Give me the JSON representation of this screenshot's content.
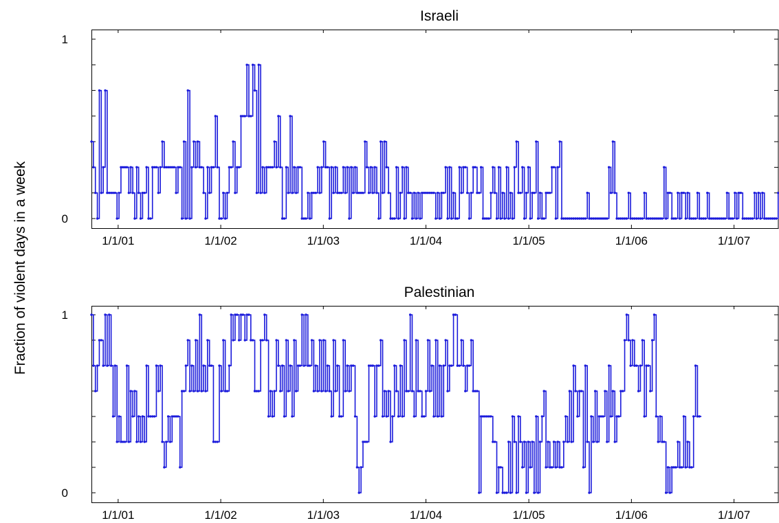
{
  "figure": {
    "ylabel": "Fraction of violent days in a week"
  },
  "chart_data": [
    {
      "type": "line",
      "title": "Israeli",
      "xlabel": "",
      "ylabel": "Fraction of violent days in a week",
      "x_start": "2000-09-28",
      "x_step_days": 7,
      "xlim": [
        "2000-09-28",
        "2007-06-10"
      ],
      "x_ticks": [
        {
          "date": "2001-01-01",
          "label": "1/1/01"
        },
        {
          "date": "2002-01-01",
          "label": "1/1/02"
        },
        {
          "date": "2003-01-01",
          "label": "1/1/03"
        },
        {
          "date": "2004-01-01",
          "label": "1/1/04"
        },
        {
          "date": "2005-01-01",
          "label": "1/1/05"
        },
        {
          "date": "2006-01-01",
          "label": "1/1/06"
        },
        {
          "date": "2007-01-01",
          "label": "1/1/07"
        }
      ],
      "ylim": [
        0,
        1
      ],
      "y_ticks": [
        {
          "value": 0,
          "label": "0"
        },
        {
          "value": 1,
          "label": "1"
        }
      ],
      "y_minor_ticks": [
        0.1429,
        0.2857,
        0.4286,
        0.5714,
        0.7143,
        0.8571
      ],
      "step": true,
      "markers": true,
      "grid": false,
      "color": "#1a1adb",
      "series": [
        {
          "values": [
            0.429,
            0.286,
            0.143,
            0,
            0.714,
            0.143,
            0.286,
            0.714,
            0.143,
            0.143,
            0.143,
            0.143,
            0.143,
            0,
            0.143,
            0.286,
            0.286,
            0.286,
            0.286,
            0.143,
            0.286,
            0.143,
            0,
            0.286,
            0.143,
            0,
            0.143,
            0.143,
            0.286,
            0,
            0,
            0.286,
            0.286,
            0.286,
            0.143,
            0.286,
            0.429,
            0.286,
            0.286,
            0.286,
            0.286,
            0.286,
            0.286,
            0.143,
            0.286,
            0.286,
            0,
            0.429,
            0,
            0.714,
            0,
            0.286,
            0.429,
            0.286,
            0.429,
            0.286,
            0.286,
            0.143,
            0,
            0.286,
            0.143,
            0.286,
            0.286,
            0.571,
            0.286,
            0,
            0,
            0.143,
            0,
            0.143,
            0.286,
            0.286,
            0.429,
            0.143,
            0.286,
            0.286,
            0.571,
            0.571,
            0.571,
            0.857,
            0.571,
            0.571,
            0.857,
            0.714,
            0.143,
            0.857,
            0.143,
            0.286,
            0.143,
            0.286,
            0.286,
            0.286,
            0.286,
            0.429,
            0.286,
            0.571,
            0.286,
            0,
            0,
            0.286,
            0.143,
            0.571,
            0.143,
            0.286,
            0.143,
            0.286,
            0.286,
            0,
            0,
            0,
            0.143,
            0,
            0.143,
            0.143,
            0.143,
            0.286,
            0.143,
            0.286,
            0.429,
            0.286,
            0.286,
            0,
            0.286,
            0.143,
            0.286,
            0.143,
            0.143,
            0.143,
            0.286,
            0.143,
            0.286,
            0,
            0.286,
            0.143,
            0.286,
            0.143,
            0.143,
            0.143,
            0.143,
            0.429,
            0.286,
            0.143,
            0.286,
            0.143,
            0.286,
            0.143,
            0,
            0.429,
            0.143,
            0.429,
            0.286,
            0.143,
            0,
            0,
            0,
            0.286,
            0,
            0.143,
            0.286,
            0,
            0.286,
            0.143,
            0.143,
            0,
            0.143,
            0,
            0.143,
            0,
            0.143,
            0.143,
            0.143,
            0.143,
            0.143,
            0.143,
            0.143,
            0,
            0.143,
            0,
            0.143,
            0.143,
            0.286,
            0,
            0.286,
            0,
            0.143,
            0,
            0,
            0.286,
            0.143,
            0.286,
            0.286,
            0.143,
            0,
            0.143,
            0.286,
            0.286,
            0.143,
            0.143,
            0.286,
            0,
            0,
            0,
            0,
            0.143,
            0.286,
            0.143,
            0,
            0.286,
            0,
            0.143,
            0,
            0.286,
            0,
            0.143,
            0,
            0.286,
            0.429,
            0.143,
            0.143,
            0.286,
            0,
            0.143,
            0.286,
            0,
            0.143,
            0.143,
            0.429,
            0,
            0.143,
            0,
            0,
            0.143,
            0.143,
            0.143,
            0.286,
            0.286,
            0,
            0.286,
            0.429,
            0,
            0,
            0,
            0,
            0,
            0,
            0,
            0,
            0,
            0,
            0,
            0,
            0,
            0.143,
            0,
            0,
            0,
            0,
            0,
            0,
            0,
            0,
            0,
            0,
            0.286,
            0.143,
            0.429,
            0.143,
            0,
            0,
            0,
            0,
            0,
            0,
            0.143,
            0,
            0,
            0,
            0,
            0,
            0,
            0,
            0.143,
            0,
            0,
            0,
            0,
            0,
            0,
            0,
            0,
            0,
            0.286,
            0,
            0.143,
            0.143,
            0,
            0,
            0,
            0.143,
            0,
            0.143,
            0.143,
            0,
            0.143,
            0,
            0,
            0,
            0,
            0.143,
            0,
            0,
            0,
            0,
            0.143,
            0,
            0,
            0,
            0,
            0,
            0,
            0,
            0,
            0,
            0.143,
            0,
            0,
            0,
            0.143,
            0,
            0.143,
            0.143,
            0,
            0,
            0,
            0,
            0,
            0,
            0.143,
            0,
            0.143,
            0,
            0.143,
            0,
            0,
            0,
            0,
            0,
            0,
            0,
            0.143,
            0,
            0,
            0,
            0,
            0,
            0,
            0.143,
            0,
            0,
            0.143,
            0
          ]
        }
      ]
    },
    {
      "type": "line",
      "title": "Palestinian",
      "xlabel": "",
      "ylabel": "Fraction of violent days in a week",
      "x_start": "2000-09-28",
      "x_step_days": 7,
      "xlim": [
        "2000-09-28",
        "2007-06-10"
      ],
      "x_ticks": [
        {
          "date": "2001-01-01",
          "label": "1/1/01"
        },
        {
          "date": "2002-01-01",
          "label": "1/1/02"
        },
        {
          "date": "2003-01-01",
          "label": "1/1/03"
        },
        {
          "date": "2004-01-01",
          "label": "1/1/04"
        },
        {
          "date": "2005-01-01",
          "label": "1/1/05"
        },
        {
          "date": "2006-01-01",
          "label": "1/1/06"
        },
        {
          "date": "2007-01-01",
          "label": "1/1/07"
        }
      ],
      "ylim": [
        0,
        1
      ],
      "y_ticks": [
        {
          "value": 0,
          "label": "0"
        },
        {
          "value": 1,
          "label": "1"
        }
      ],
      "y_minor_ticks": [
        0.1429,
        0.2857,
        0.4286,
        0.5714,
        0.7143,
        0.8571
      ],
      "step": true,
      "markers": true,
      "grid": false,
      "color": "#1a1adb",
      "series": [
        {
          "values": [
            1,
            0.714,
            0.571,
            0.714,
            0.857,
            0.857,
            0.714,
            1,
            0.714,
            1,
            0.714,
            0.429,
            0.714,
            0.286,
            0.429,
            0.286,
            0.286,
            0.286,
            0.714,
            0.286,
            0.571,
            0.429,
            0.571,
            0.286,
            0.429,
            0.286,
            0.429,
            0.286,
            0.714,
            0.429,
            0.429,
            0.429,
            0.429,
            0.714,
            0.571,
            0.714,
            0.286,
            0.143,
            0.286,
            0.429,
            0.286,
            0.429,
            0.429,
            0.429,
            0.429,
            0.143,
            0.571,
            0.571,
            0.714,
            0.857,
            0.571,
            0.714,
            0.571,
            0.857,
            0.571,
            1,
            0.571,
            0.714,
            0.571,
            0.857,
            0.714,
            0.714,
            0.286,
            0.286,
            0.286,
            0.714,
            0.571,
            0.857,
            0.571,
            0.571,
            0.714,
            1,
            0.857,
            1,
            1,
            0.857,
            1,
            1,
            0.857,
            1,
            1,
            0.857,
            0.857,
            0.571,
            0.571,
            0.571,
            0.857,
            0.857,
            1,
            0.857,
            0.429,
            0.571,
            0.429,
            0.571,
            0.857,
            0.714,
            0.571,
            0.714,
            0.429,
            0.857,
            0.571,
            0.714,
            0.429,
            0.857,
            0.571,
            0.714,
            0.714,
            1,
            0.714,
            1,
            0.714,
            0.714,
            0.857,
            0.571,
            0.714,
            0.571,
            0.857,
            0.571,
            0.857,
            0.571,
            0.714,
            0.571,
            0.429,
            0.857,
            0.571,
            0.714,
            0.429,
            0.429,
            0.857,
            0.571,
            0.714,
            0.571,
            0.714,
            0.714,
            0.429,
            0.143,
            0,
            0.143,
            0.286,
            0.286,
            0.286,
            0.714,
            0.714,
            0.714,
            0.429,
            0.714,
            0.714,
            0.857,
            0.429,
            0.571,
            0.429,
            0.571,
            0.286,
            0.429,
            0.714,
            0.571,
            0.429,
            0.714,
            0.429,
            0.857,
            0.571,
            0.571,
            1,
            0.571,
            0.429,
            0.857,
            0.571,
            0.571,
            0.429,
            0.429,
            0.571,
            0.857,
            0.571,
            0.714,
            0.429,
            0.857,
            0.429,
            0.714,
            0.429,
            0.714,
            0.857,
            0.571,
            0.714,
            0.714,
            1,
            1,
            0.714,
            0.714,
            0.857,
            0.714,
            0.571,
            0.714,
            0.714,
            0.857,
            0.571,
            0.571,
            0.571,
            0,
            0.429,
            0.429,
            0.429,
            0.429,
            0.429,
            0.429,
            0.286,
            0.286,
            0,
            0.143,
            0.143,
            0,
            0,
            0,
            0.286,
            0,
            0.429,
            0.286,
            0,
            0.429,
            0.286,
            0.143,
            0.286,
            0,
            0.286,
            0.143,
            0.286,
            0,
            0.429,
            0,
            0.286,
            0.429,
            0.571,
            0.143,
            0.286,
            0.143,
            0.143,
            0.286,
            0.143,
            0.286,
            0.143,
            0.143,
            0.286,
            0.429,
            0.286,
            0.571,
            0.286,
            0.714,
            0.571,
            0.429,
            0.571,
            0.571,
            0.143,
            0.714,
            0.286,
            0,
            0.429,
            0.286,
            0.571,
            0.286,
            0.429,
            0.429,
            0.429,
            0.571,
            0.286,
            0.714,
            0.429,
            0.571,
            0.286,
            0.429,
            0.429,
            0.571,
            0.571,
            0.857,
            1,
            0.857,
            0.714,
            0.857,
            0.714,
            0.714,
            0.571,
            0.714,
            0.857,
            0.429,
            0.714,
            0.714,
            0.571,
            0.857,
            1,
            0.429,
            0.286,
            0.429,
            0.286,
            0.286,
            0,
            0.143,
            0,
            0.143,
            0.143,
            0.143,
            0.286,
            0.143,
            0.143,
            0.429,
            0.143,
            0.286,
            0.143,
            0.143,
            0.429,
            0.714,
            0.429,
            0.429
          ]
        }
      ]
    }
  ]
}
